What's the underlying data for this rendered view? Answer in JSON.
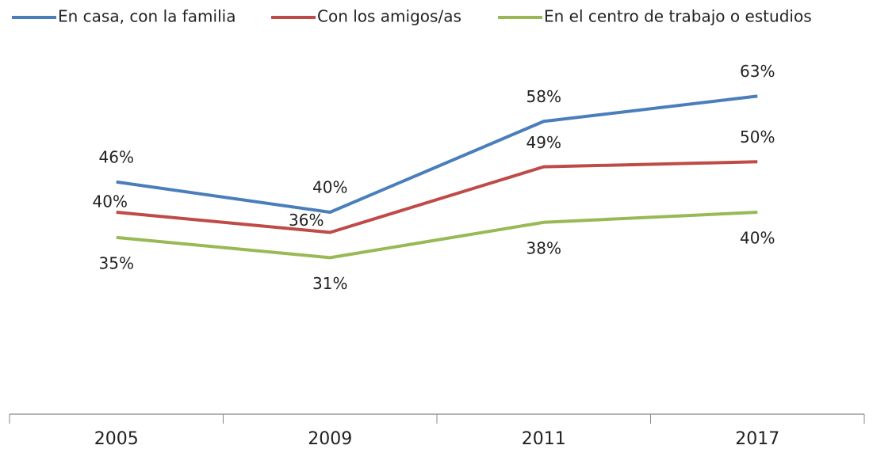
{
  "chart_data": {
    "type": "line",
    "categories": [
      "2005",
      "2009",
      "2011",
      "2017"
    ],
    "series": [
      {
        "name": "En casa, con la familia",
        "color": "#4a7ebb",
        "values": [
          46,
          40,
          58,
          63
        ],
        "value_labels": [
          "46%",
          "40%",
          "58%",
          "63%"
        ]
      },
      {
        "name": "Con los amigos/as",
        "color": "#be4b48",
        "values": [
          40,
          36,
          49,
          50
        ],
        "value_labels": [
          "40%",
          "36%",
          "49%",
          "50%"
        ]
      },
      {
        "name": "En el centro de trabajo o estudios",
        "color": "#98b954",
        "values": [
          35,
          31,
          38,
          40
        ],
        "value_labels": [
          "35%",
          "31%",
          "38%",
          "40%"
        ]
      }
    ],
    "ylim": [
      0,
      80
    ],
    "legend": "top"
  }
}
